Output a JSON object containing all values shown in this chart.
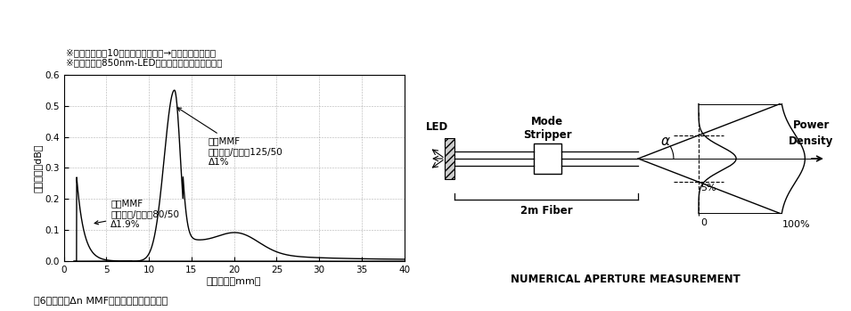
{
  "fig_title_line1": "※マンドレルに10回巻きの曲げ損失→平均換算して記載",
  "fig_title_line2": "※測定波長：850nm-LED，モードスクランブラ挿入",
  "ylabel": "曲げ損失（dB）",
  "xlabel": "曲げ半径（mm）",
  "fig_caption_left": "図6　細線高Δn MMF光ファイバの曲げ特性",
  "label_mmf1_line1": "汎用MMF",
  "label_mmf1_line2": "クラッド/コア＝125/50",
  "label_mmf1_line3": "Δ1%",
  "label_mmf2_line1": "細径MMF",
  "label_mmf2_line2": "クラッド/コア＝80/50",
  "label_mmf2_line3": "Δ1.9%",
  "fig_caption_right": "NUMERICAL APERTURE MEASUREMENT",
  "label_led": "LED",
  "label_mode_stripper_1": "Mode",
  "label_mode_stripper_2": "Stripper",
  "label_fiber": "2m Fiber",
  "label_alpha": "α",
  "label_power_density_1": "Power",
  "label_power_density_2": "Density",
  "label_100pct": "100%",
  "label_5pct": "5%",
  "label_0": "0",
  "ylim": [
    0,
    0.6
  ],
  "xlim": [
    0,
    40
  ],
  "yticks": [
    0,
    0.1,
    0.2,
    0.3,
    0.4,
    0.5,
    0.6
  ],
  "xticks": [
    0,
    5,
    10,
    15,
    20,
    25,
    30,
    35,
    40
  ]
}
